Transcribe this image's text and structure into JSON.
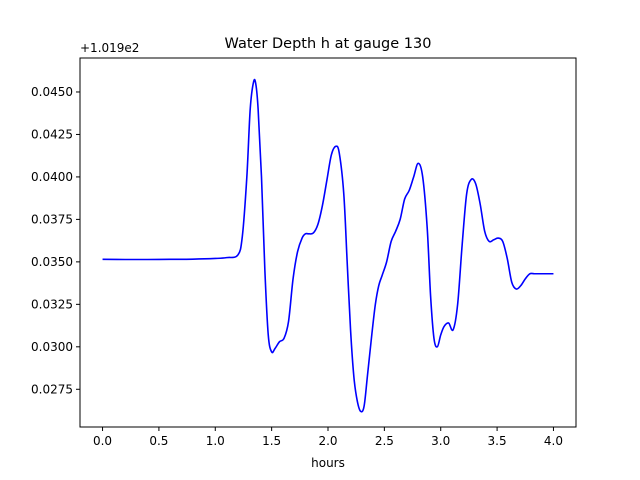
{
  "chart_data": {
    "type": "line",
    "title": "Water Depth h at gauge 130",
    "xlabel": "hours",
    "ylabel": "",
    "offset_label": "+1.019e2",
    "xlim": [
      -0.2,
      4.2
    ],
    "ylim": [
      0.02528,
      0.047
    ],
    "xticks": [
      0.0,
      0.5,
      1.0,
      1.5,
      2.0,
      2.5,
      3.0,
      3.5,
      4.0
    ],
    "xtick_labels": [
      "0.0",
      "0.5",
      "1.0",
      "1.5",
      "2.0",
      "2.5",
      "3.0",
      "3.5",
      "4.0"
    ],
    "yticks": [
      0.0275,
      0.03,
      0.0325,
      0.035,
      0.0375,
      0.04,
      0.0425,
      0.045
    ],
    "ytick_labels": [
      "0.0275",
      "0.0300",
      "0.0325",
      "0.0350",
      "0.0375",
      "0.0400",
      "0.0425",
      "0.0450"
    ],
    "grid": false,
    "colors": {
      "line": "#0000ff"
    },
    "series": [
      {
        "x": [
          0.0,
          0.2,
          0.4,
          0.6,
          0.8,
          1.0,
          1.1,
          1.2,
          1.24,
          1.28,
          1.31,
          1.34,
          1.36,
          1.38,
          1.41,
          1.44,
          1.47,
          1.5,
          1.53,
          1.57,
          1.61,
          1.65,
          1.69,
          1.73,
          1.77,
          1.8,
          1.83,
          1.87,
          1.91,
          1.95,
          1.99,
          2.03,
          2.07,
          2.1,
          2.14,
          2.17,
          2.2,
          2.23,
          2.26,
          2.29,
          2.32,
          2.35,
          2.39,
          2.42,
          2.45,
          2.48,
          2.52,
          2.56,
          2.6,
          2.64,
          2.68,
          2.72,
          2.76,
          2.8,
          2.84,
          2.88,
          2.91,
          2.94,
          2.97,
          3.0,
          3.03,
          3.07,
          3.11,
          3.15,
          3.19,
          3.23,
          3.27,
          3.31,
          3.35,
          3.39,
          3.43,
          3.47,
          3.51,
          3.55,
          3.59,
          3.63,
          3.67,
          3.71,
          3.75,
          3.79,
          3.83,
          3.87,
          3.91,
          3.95,
          4.0
        ],
        "y": [
          0.03515,
          0.03514,
          0.03514,
          0.03515,
          0.03516,
          0.0352,
          0.03525,
          0.0354,
          0.0365,
          0.04,
          0.044,
          0.0456,
          0.04545,
          0.044,
          0.04,
          0.0345,
          0.0307,
          0.0297,
          0.0299,
          0.0303,
          0.0305,
          0.0315,
          0.034,
          0.0356,
          0.0364,
          0.03665,
          0.03665,
          0.0367,
          0.0372,
          0.0383,
          0.0398,
          0.0413,
          0.0418,
          0.0414,
          0.039,
          0.035,
          0.031,
          0.0282,
          0.0268,
          0.0262,
          0.0265,
          0.0283,
          0.0308,
          0.0325,
          0.0336,
          0.0342,
          0.035,
          0.0362,
          0.0368,
          0.0375,
          0.0387,
          0.0392,
          0.04,
          0.0408,
          0.04,
          0.037,
          0.033,
          0.0305,
          0.03,
          0.0307,
          0.0312,
          0.0314,
          0.031,
          0.0325,
          0.036,
          0.039,
          0.03985,
          0.0396,
          0.0384,
          0.0368,
          0.0362,
          0.0363,
          0.0364,
          0.0362,
          0.0352,
          0.0338,
          0.0334,
          0.0336,
          0.034,
          0.0343,
          0.0343,
          0.0343,
          0.0343,
          0.0343,
          0.0343
        ]
      }
    ]
  }
}
